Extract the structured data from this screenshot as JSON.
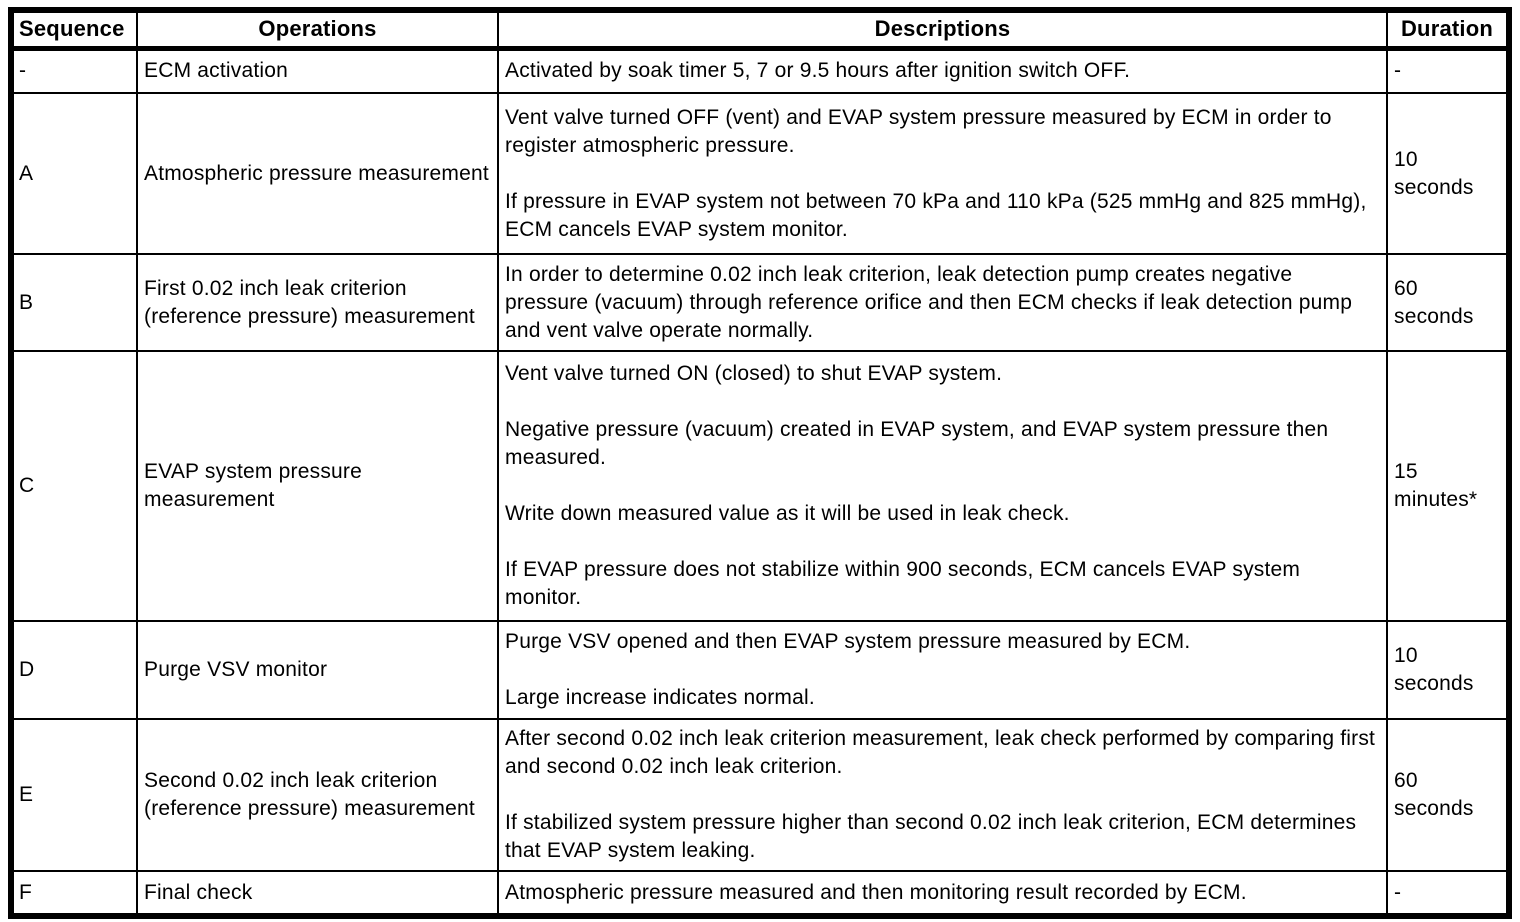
{
  "colors": {
    "border": "#000000",
    "background": "#ffffff",
    "text": "#000000"
  },
  "table": {
    "headers": {
      "sequence": "Sequence",
      "operations": "Operations",
      "descriptions": "Descriptions",
      "duration": "Duration"
    },
    "rows": [
      {
        "sequence": "-",
        "operation": "ECM activation",
        "description": [
          "Activated by soak timer 5, 7 or 9.5 hours after ignition switch OFF."
        ],
        "duration": "-"
      },
      {
        "sequence": "A",
        "operation": "Atmospheric pressure measurement",
        "description": [
          "Vent valve turned OFF (vent) and EVAP system pressure measured by ECM in order to register atmospheric pressure.",
          "If pressure in EVAP system not between 70 kPa and 110 kPa (525 mmHg and 825 mmHg), ECM cancels EVAP system monitor."
        ],
        "duration": "10 seconds"
      },
      {
        "sequence": "B",
        "operation": "First 0.02 inch leak criterion (reference pressure) measurement",
        "description": [
          "In order to determine 0.02 inch leak criterion, leak detection pump creates negative pressure (vacuum) through reference orifice and then ECM checks if leak detection pump and vent valve operate normally."
        ],
        "duration": "60 seconds"
      },
      {
        "sequence": "C",
        "operation": "EVAP system pressure measurement",
        "description": [
          "Vent valve turned ON (closed) to shut EVAP system.",
          "Negative pressure (vacuum) created in EVAP system, and EVAP system pressure then measured.",
          "Write down measured value as it will be used in leak check.",
          "If EVAP pressure does not stabilize within 900 seconds, ECM cancels EVAP system monitor."
        ],
        "duration": "15 minutes*"
      },
      {
        "sequence": "D",
        "operation": "Purge VSV monitor",
        "description": [
          "Purge VSV opened and then EVAP system pressure measured by ECM.",
          "Large increase indicates normal."
        ],
        "duration": "10 seconds"
      },
      {
        "sequence": "E",
        "operation": "Second 0.02 inch leak criterion (reference pressure) measurement",
        "description": [
          "After second 0.02 inch leak criterion measurement, leak check performed by comparing first and second 0.02 inch leak criterion.",
          "If stabilized system pressure higher than second 0.02 inch leak criterion, ECM determines that EVAP system leaking."
        ],
        "duration": "60 seconds"
      },
      {
        "sequence": "F",
        "operation": "Final check",
        "description": [
          "Atmospheric pressure measured and then monitoring result recorded by ECM."
        ],
        "duration": "-"
      }
    ]
  }
}
